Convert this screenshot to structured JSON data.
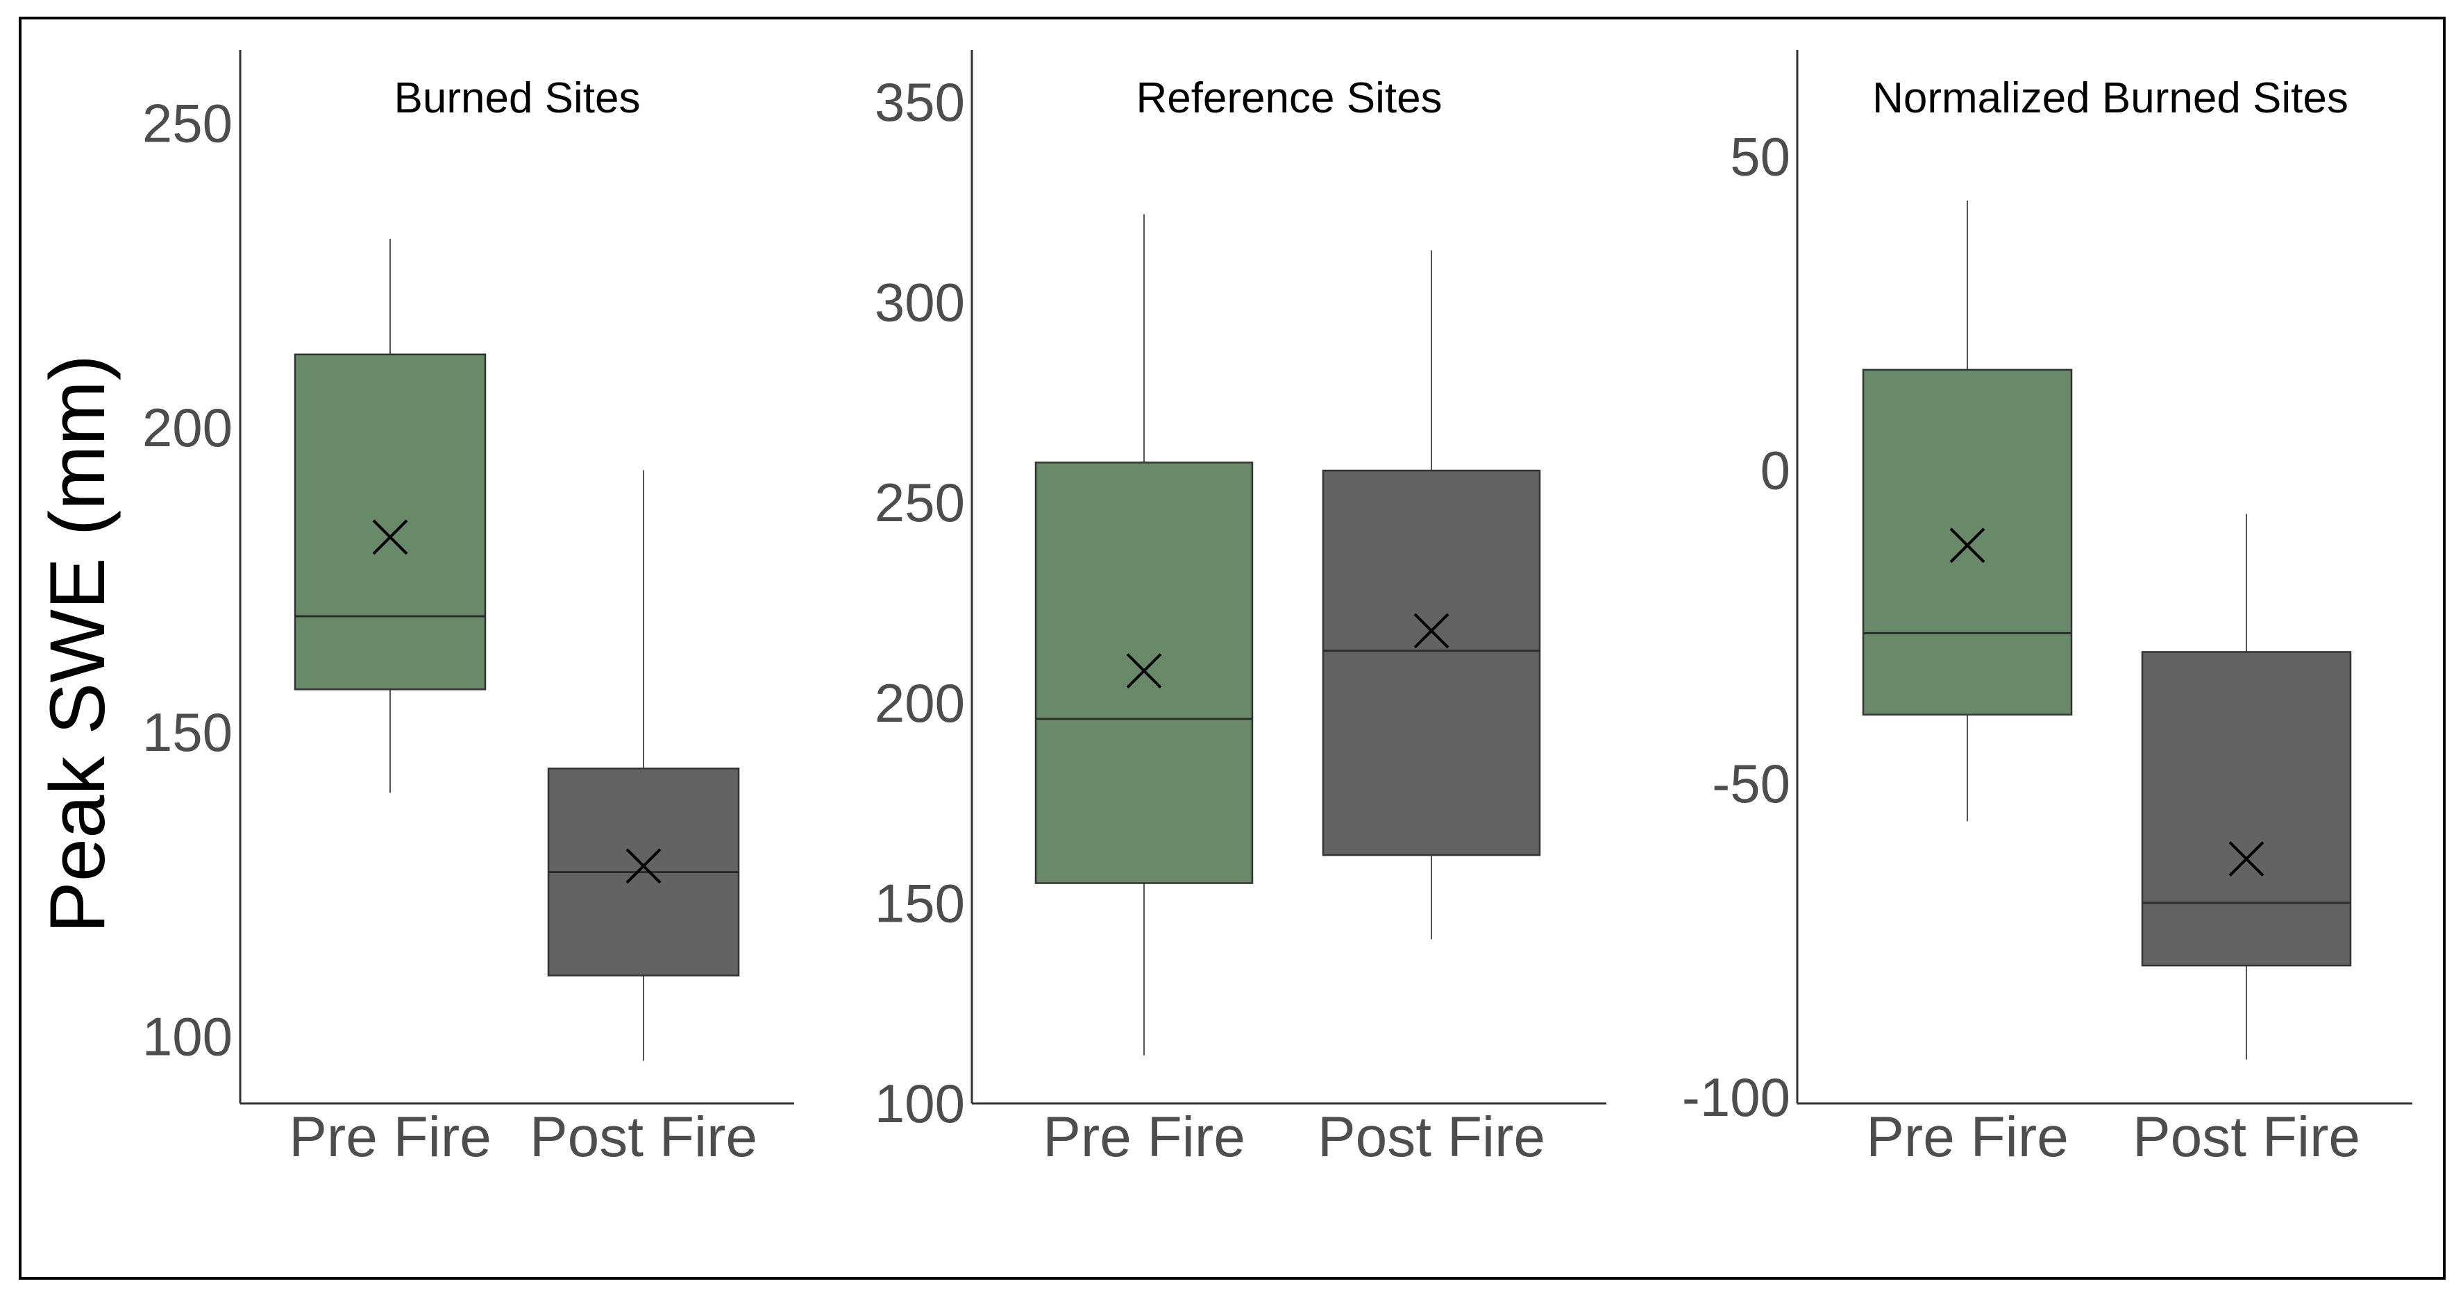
{
  "figure": {
    "ylabel": "Peak SWE (mm)",
    "colors": {
      "pre": "#688a68",
      "post": "#636363",
      "border": "#000000",
      "axis": "#333333",
      "text": "#4d4d4d"
    }
  },
  "chart_data": [
    {
      "type": "box",
      "title": "Burned Sites",
      "ylabel": "Peak SWE (mm)",
      "ylim": [
        89,
        262
      ],
      "yticks": [
        100,
        150,
        200,
        250
      ],
      "categories": [
        "Pre Fire",
        "Post Fire"
      ],
      "boxes": [
        {
          "category": "Pre Fire",
          "whisker_low": 140,
          "q1": 157,
          "median": 169,
          "q3": 212,
          "whisker_high": 231,
          "mean": 182,
          "color": "#688a68"
        },
        {
          "category": "Post Fire",
          "whisker_low": 96,
          "q1": 110,
          "median": 127,
          "q3": 144,
          "whisker_high": 193,
          "mean": 128,
          "color": "#636363"
        }
      ],
      "grid": false
    },
    {
      "type": "box",
      "title": "Reference Sites",
      "ylabel": "",
      "ylim": [
        100,
        363
      ],
      "yticks": [
        100,
        150,
        200,
        250,
        300,
        350
      ],
      "categories": [
        "Pre Fire",
        "Post Fire"
      ],
      "boxes": [
        {
          "category": "Pre Fire",
          "whisker_low": 112,
          "q1": 155,
          "median": 196,
          "q3": 260,
          "whisker_high": 322,
          "mean": 208,
          "color": "#688a68"
        },
        {
          "category": "Post Fire",
          "whisker_low": 141,
          "q1": 162,
          "median": 213,
          "q3": 258,
          "whisker_high": 313,
          "mean": 218,
          "color": "#636363"
        }
      ],
      "grid": false
    },
    {
      "type": "box",
      "title": "Normalized Burned Sites",
      "ylabel": "",
      "ylim": [
        -101,
        67
      ],
      "yticks": [
        -100,
        -50,
        0,
        50
      ],
      "categories": [
        "Pre Fire",
        "Post Fire"
      ],
      "boxes": [
        {
          "category": "Pre Fire",
          "whisker_low": -56,
          "q1": -39,
          "median": -26,
          "q3": 16,
          "whisker_high": 43,
          "mean": -12,
          "color": "#688a68"
        },
        {
          "category": "Post Fire",
          "whisker_low": -94,
          "q1": -79,
          "median": -69,
          "q3": -29,
          "whisker_high": -7,
          "mean": -62,
          "color": "#636363"
        }
      ],
      "grid": false
    }
  ]
}
